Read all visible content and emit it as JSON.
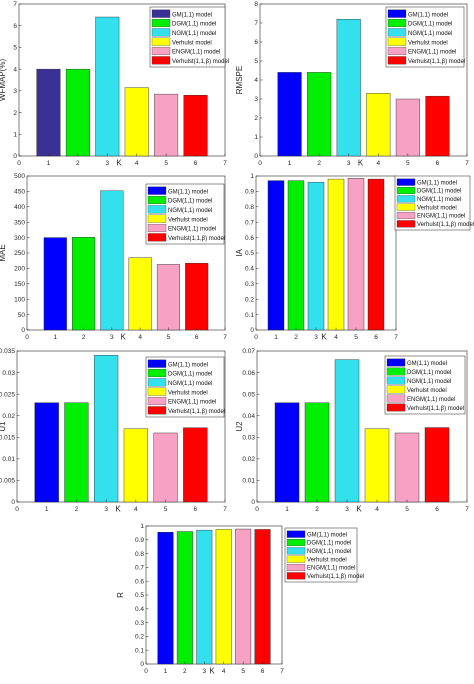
{
  "legend_labels": [
    "GM(1,1) model",
    "DGM(1,1) model",
    "NGM(1,1) model",
    "Verhulst model",
    "ENGM(1,1) model",
    "Verhulst(1,1,β) model"
  ],
  "series_colors": [
    "#3a3096",
    "#00ee00",
    "#33e0ee",
    "#ffff00",
    "#f7a1c4",
    "#ff0000"
  ],
  "chart_data": [
    {
      "type": "bar",
      "ylabel": "WFMAP(%)",
      "xlabel": "K",
      "categories": [
        "1",
        "2",
        "3",
        "4",
        "5",
        "6"
      ],
      "values": [
        4.0,
        4.0,
        6.4,
        3.15,
        2.85,
        2.8
      ],
      "ylim": [
        0,
        7
      ],
      "xlim": [
        0,
        7
      ],
      "yticks": [
        "0",
        "1",
        "2",
        "3",
        "4",
        "5",
        "6",
        "7"
      ],
      "xticks": [
        "0",
        "1",
        "2",
        "3",
        "4",
        "5",
        "6",
        "7"
      ],
      "colors": [
        "#3a3096",
        "#00ee00",
        "#33e0ee",
        "#ffff00",
        "#f7a1c4",
        "#ff0000"
      ],
      "grid": false,
      "legend_position": "top-right"
    },
    {
      "type": "bar",
      "ylabel": "RMSPE",
      "xlabel": "K",
      "categories": [
        "1",
        "2",
        "3",
        "4",
        "5",
        "6"
      ],
      "values": [
        4.4,
        4.4,
        7.2,
        3.3,
        3.0,
        3.15
      ],
      "ylim": [
        0,
        8
      ],
      "xlim": [
        0,
        7
      ],
      "yticks": [
        "0",
        "1",
        "2",
        "3",
        "4",
        "5",
        "6",
        "7",
        "8"
      ],
      "xticks": [
        "0",
        "1",
        "2",
        "3",
        "4",
        "5",
        "6",
        "7"
      ],
      "colors": [
        "#0000ff",
        "#00ee00",
        "#33e0ee",
        "#ffff00",
        "#f7a1c4",
        "#ff0000"
      ],
      "grid": false,
      "legend_position": "top-right"
    },
    {
      "type": "bar",
      "ylabel": "MAE",
      "xlabel": "K",
      "categories": [
        "1",
        "2",
        "3",
        "4",
        "5",
        "6"
      ],
      "values": [
        300,
        301,
        452,
        235,
        213,
        217
      ],
      "ylim": [
        0,
        500
      ],
      "xlim": [
        0,
        7
      ],
      "yticks": [
        "0",
        "50",
        "100",
        "150",
        "200",
        "250",
        "300",
        "350",
        "400",
        "450",
        "500"
      ],
      "xticks": [
        "0",
        "1",
        "2",
        "3",
        "4",
        "5",
        "6",
        "7"
      ],
      "colors": [
        "#0000ff",
        "#00ee00",
        "#33e0ee",
        "#ffff00",
        "#f7a1c4",
        "#ff0000"
      ],
      "grid": false,
      "legend_position": "top-right"
    },
    {
      "type": "bar",
      "ylabel": "IA",
      "xlabel": "K",
      "categories": [
        "1",
        "2",
        "3",
        "4",
        "5",
        "6"
      ],
      "values": [
        0.97,
        0.97,
        0.96,
        0.98,
        0.985,
        0.98
      ],
      "ylim": [
        0,
        1
      ],
      "xlim": [
        0,
        7
      ],
      "yticks": [
        "0",
        "0.1",
        "0.2",
        "0.3",
        "0.4",
        "0.5",
        "0.6",
        "0.7",
        "0.8",
        "0.9",
        "1"
      ],
      "xticks": [
        "0",
        "1",
        "2",
        "3",
        "4",
        "5",
        "6",
        "7"
      ],
      "colors": [
        "#0000ff",
        "#00ee00",
        "#33e0ee",
        "#ffff00",
        "#f7a1c4",
        "#ff0000"
      ],
      "grid": false,
      "legend_position": "right"
    },
    {
      "type": "bar",
      "ylabel": "U1",
      "xlabel": "K",
      "categories": [
        "1",
        "2",
        "3",
        "4",
        "5",
        "6"
      ],
      "values": [
        0.023,
        0.023,
        0.034,
        0.017,
        0.016,
        0.0172
      ],
      "ylim": [
        0,
        0.035
      ],
      "xlim": [
        0,
        7
      ],
      "yticks": [
        "0",
        "0.005",
        "0.01",
        "0.015",
        "0.02",
        "0.025",
        "0.03",
        "0.035"
      ],
      "xticks": [
        "0",
        "1",
        "2",
        "3",
        "4",
        "5",
        "6",
        "7"
      ],
      "colors": [
        "#0000ff",
        "#00ee00",
        "#33e0ee",
        "#ffff00",
        "#f7a1c4",
        "#ff0000"
      ],
      "grid": false,
      "legend_position": "top-right"
    },
    {
      "type": "bar",
      "ylabel": "U2",
      "xlabel": "K",
      "categories": [
        "1",
        "2",
        "3",
        "4",
        "5",
        "6"
      ],
      "values": [
        0.046,
        0.046,
        0.066,
        0.034,
        0.032,
        0.0345
      ],
      "ylim": [
        0,
        0.07
      ],
      "xlim": [
        0,
        7
      ],
      "yticks": [
        "0",
        "0.01",
        "0.02",
        "0.03",
        "0.04",
        "0.05",
        "0.06",
        "0.07"
      ],
      "xticks": [
        "0",
        "1",
        "2",
        "3",
        "4",
        "5",
        "6",
        "7"
      ],
      "colors": [
        "#0000ff",
        "#00ee00",
        "#33e0ee",
        "#ffff00",
        "#f7a1c4",
        "#ff0000"
      ],
      "grid": false,
      "legend_position": "top-right"
    },
    {
      "type": "bar",
      "ylabel": "R",
      "xlabel": "K",
      "categories": [
        "1",
        "2",
        "3",
        "4",
        "5",
        "6"
      ],
      "values": [
        0.955,
        0.96,
        0.97,
        0.975,
        0.978,
        0.975
      ],
      "ylim": [
        0,
        1
      ],
      "xlim": [
        0,
        7
      ],
      "yticks": [
        "0",
        "0.1",
        "0.2",
        "0.3",
        "0.4",
        "0.5",
        "0.6",
        "0.7",
        "0.8",
        "0.9",
        "1"
      ],
      "xticks": [
        "0",
        "1",
        "2",
        "3",
        "4",
        "5",
        "6",
        "7"
      ],
      "colors": [
        "#0000ff",
        "#00ee00",
        "#33e0ee",
        "#ffff00",
        "#f7a1c4",
        "#ff0000"
      ],
      "grid": false,
      "legend_position": "right"
    }
  ]
}
